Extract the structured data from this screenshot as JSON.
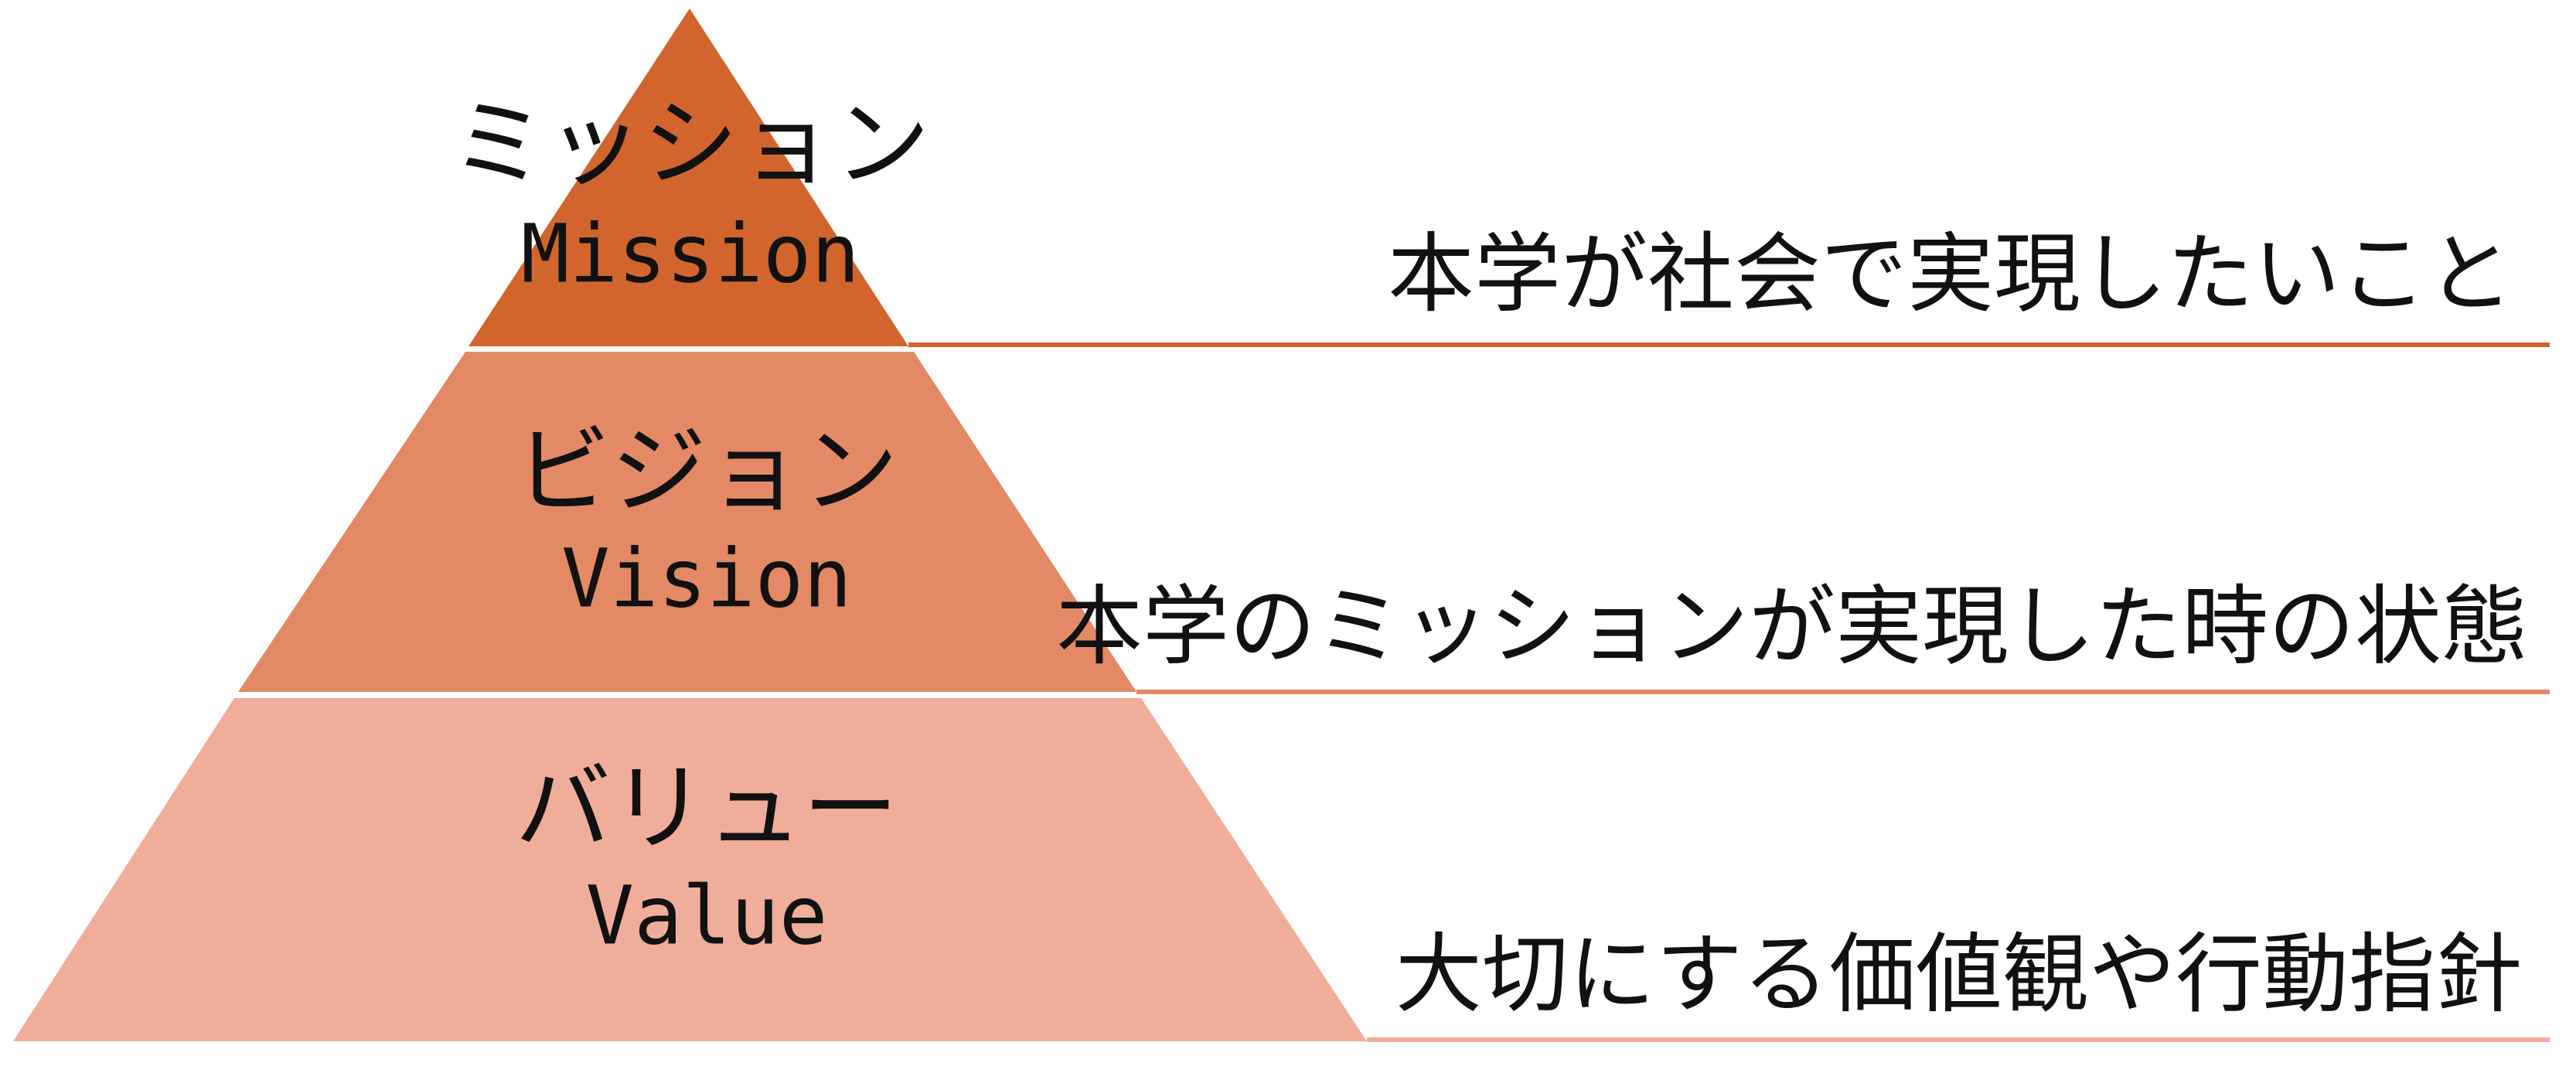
{
  "levels": [
    {
      "jp": "ミッション",
      "en": "Mission",
      "description": "本学が社会で実現したいこと"
    },
    {
      "jp": "ビジョン",
      "en": "Vision",
      "description": "本学のミッションが実現した時の状態"
    },
    {
      "jp": "バリュー",
      "en": "Value",
      "description": "大切にする価値観や行動指針"
    }
  ]
}
